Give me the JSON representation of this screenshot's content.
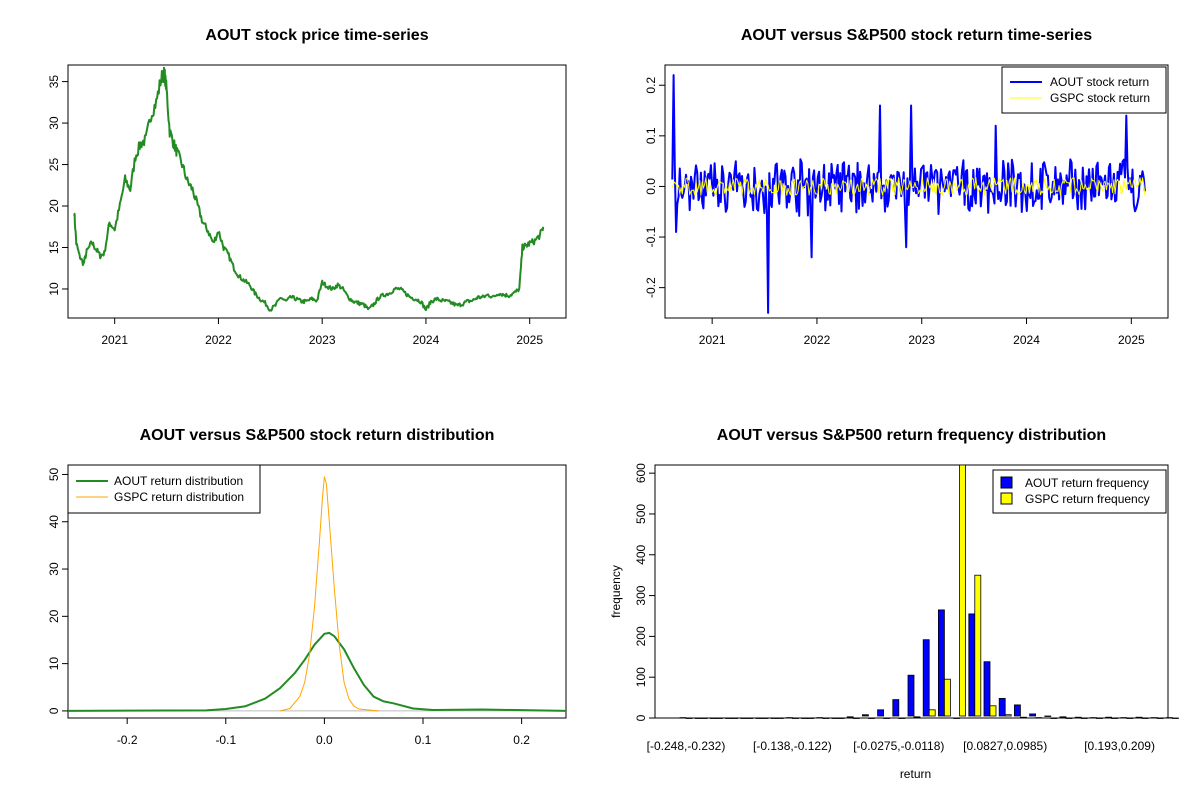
{
  "chart_data": [
    {
      "type": "line",
      "title": "AOUT stock price time-series",
      "xlabel": "",
      "ylabel": "",
      "xlim": [
        2020.55,
        2025.35
      ],
      "ylim": [
        6.5,
        37
      ],
      "xticks": [
        "2021",
        "2022",
        "2023",
        "2024",
        "2025"
      ],
      "yticks": [
        10,
        15,
        20,
        25,
        30,
        35
      ],
      "grid": false,
      "color": "#228B22",
      "series": [
        {
          "x": [
            2020.61,
            2020.63,
            2020.66,
            2020.7,
            2020.73,
            2020.78,
            2020.82,
            2020.86,
            2020.9,
            2020.95,
            2021.0,
            2021.05,
            2021.1,
            2021.15,
            2021.2,
            2021.25,
            2021.3,
            2021.35,
            2021.4,
            2021.45,
            2021.48,
            2021.5,
            2021.53,
            2021.57,
            2021.6,
            2021.65,
            2021.7,
            2021.75,
            2021.8,
            2021.85,
            2021.9,
            2021.95,
            2022.0,
            2022.05,
            2022.1,
            2022.15,
            2022.2,
            2022.25,
            2022.3,
            2022.35,
            2022.4,
            2022.45,
            2022.5,
            2022.55,
            2022.6,
            2022.65,
            2022.7,
            2022.75,
            2022.8,
            2022.85,
            2022.9,
            2022.95,
            2023.0,
            2023.05,
            2023.1,
            2023.15,
            2023.2,
            2023.25,
            2023.3,
            2023.35,
            2023.4,
            2023.45,
            2023.5,
            2023.55,
            2023.6,
            2023.65,
            2023.7,
            2023.75,
            2023.8,
            2023.85,
            2023.9,
            2023.95,
            2024.0,
            2024.05,
            2024.1,
            2024.15,
            2024.2,
            2024.25,
            2024.3,
            2024.35,
            2024.4,
            2024.45,
            2024.5,
            2024.55,
            2024.6,
            2024.65,
            2024.7,
            2024.75,
            2024.8,
            2024.85,
            2024.9,
            2024.93,
            2024.96,
            2025.0,
            2025.05,
            2025.1,
            2025.13
          ],
          "y": [
            19.3,
            15.5,
            14.0,
            13.0,
            14.5,
            15.6,
            14.8,
            14.0,
            14.3,
            18.0,
            17.2,
            20.0,
            23.2,
            22.0,
            26.0,
            27.5,
            28.0,
            31.0,
            32.5,
            35.5,
            36.0,
            34.0,
            29.0,
            27.5,
            26.5,
            25.0,
            23.0,
            22.0,
            20.0,
            18.0,
            17.0,
            15.5,
            17.0,
            15.0,
            14.0,
            12.5,
            11.5,
            11.0,
            10.5,
            9.5,
            8.8,
            8.3,
            7.5,
            8.0,
            9.0,
            8.5,
            9.0,
            8.8,
            8.5,
            8.5,
            8.8,
            8.6,
            10.8,
            10.3,
            10.0,
            10.5,
            10.0,
            9.0,
            8.5,
            8.3,
            8.1,
            7.5,
            8.2,
            9.0,
            9.3,
            9.5,
            10.0,
            10.0,
            9.5,
            9.0,
            8.8,
            8.5,
            7.5,
            8.5,
            8.8,
            8.6,
            8.5,
            8.3,
            8.0,
            8.2,
            8.5,
            8.6,
            9.0,
            9.0,
            9.3,
            9.0,
            9.5,
            9.3,
            9.2,
            9.5,
            10.0,
            15.0,
            15.2,
            15.5,
            15.8,
            16.5,
            17.5
          ]
        }
      ]
    },
    {
      "type": "line",
      "title": "AOUT versus S&P500 stock return time-series",
      "xlabel": "",
      "ylabel": "",
      "xlim": [
        2020.55,
        2025.35
      ],
      "ylim": [
        -0.26,
        0.24
      ],
      "xticks": [
        "2021",
        "2022",
        "2023",
        "2024",
        "2025"
      ],
      "yticks": [
        "-0.2",
        "-0.1",
        "0.0",
        "0.1",
        "0.2"
      ],
      "legend": "top-right",
      "series": [
        {
          "name": "AOUT stock return",
          "color": "#0000FF",
          "spikes": [
            [
              2020.63,
              0.22
            ],
            [
              2020.66,
              -0.09
            ],
            [
              2021.53,
              -0.25
            ],
            [
              2021.95,
              -0.14
            ],
            [
              2022.6,
              0.16
            ],
            [
              2022.9,
              0.16
            ],
            [
              2023.7,
              0.12
            ],
            [
              2024.95,
              0.14
            ],
            [
              2022.85,
              -0.12
            ]
          ]
        },
        {
          "name": "GSPC stock return",
          "color": "#FFFF00"
        }
      ]
    },
    {
      "type": "line",
      "title": "AOUT versus S&P500 stock return distribution",
      "xlabel": "",
      "ylabel": "",
      "xlim": [
        -0.26,
        0.245
      ],
      "ylim": [
        -1.5,
        52
      ],
      "xticks": [
        "-0.2",
        "-0.1",
        "0.0",
        "0.1",
        "0.2"
      ],
      "yticks": [
        0,
        10,
        20,
        30,
        40,
        50
      ],
      "legend": "top-left",
      "series": [
        {
          "name": "AOUT return distribution",
          "color": "#228B22",
          "x": [
            -0.26,
            -0.12,
            -0.1,
            -0.08,
            -0.06,
            -0.045,
            -0.03,
            -0.02,
            -0.01,
            0.0,
            0.005,
            0.01,
            0.02,
            0.03,
            0.04,
            0.05,
            0.06,
            0.07,
            0.09,
            0.11,
            0.16,
            0.245
          ],
          "y": [
            0,
            0.1,
            0.4,
            1.0,
            2.6,
            4.8,
            8.0,
            10.8,
            14.0,
            16.3,
            16.5,
            15.8,
            13.0,
            9.0,
            5.5,
            3.0,
            2.0,
            1.6,
            0.5,
            0.2,
            0.3,
            0
          ]
        },
        {
          "name": "GSPC return distribution",
          "color": "#FFA500",
          "x": [
            -0.045,
            -0.035,
            -0.025,
            -0.02,
            -0.015,
            -0.01,
            -0.005,
            -0.002,
            0.0,
            0.002,
            0.005,
            0.01,
            0.015,
            0.02,
            0.025,
            0.03,
            0.035,
            0.045,
            0.055
          ],
          "y": [
            0,
            0.5,
            3.0,
            6.0,
            12.0,
            22.0,
            36.0,
            45.0,
            49.5,
            48.0,
            40.0,
            26.0,
            14.0,
            6.0,
            2.5,
            1.0,
            0.4,
            0.2,
            0
          ]
        }
      ]
    },
    {
      "type": "bar",
      "title": "AOUT versus S&P500 return frequency distribution",
      "xlabel": "return",
      "ylabel": "frequency",
      "ylim": [
        0,
        620
      ],
      "yticks": [
        0,
        100,
        200,
        300,
        400,
        500,
        600
      ],
      "xticklabels": [
        {
          "label": "[-0.248,-0.232)",
          "index": 0
        },
        {
          "label": "[-0.138,-0.122)",
          "index": 7
        },
        {
          "label": "[-0.0275,-0.0118)",
          "index": 14
        },
        {
          "label": "[0.0827,0.0985)",
          "index": 21
        },
        {
          "label": "[0.193,0.209)",
          "index": 28
        }
      ],
      "legend": "top-right",
      "series": [
        {
          "name": "AOUT return frequency",
          "color": "#0000FF",
          "values": [
            1,
            0,
            0,
            0,
            0,
            0,
            0,
            1,
            0,
            1,
            0,
            3,
            8,
            20,
            45,
            105,
            192,
            265,
            0,
            255,
            138,
            48,
            32,
            10,
            5,
            3,
            2,
            1,
            2,
            1,
            2,
            1,
            1
          ]
        },
        {
          "name": "GSPC return frequency",
          "color": "#FFFF00",
          "values": [
            0,
            0,
            0,
            0,
            0,
            0,
            0,
            0,
            0,
            0,
            0,
            0,
            0,
            0,
            0,
            3,
            20,
            95,
            625,
            350,
            30,
            8,
            2,
            1,
            0,
            0,
            0,
            0,
            0,
            0,
            0,
            0,
            0
          ]
        }
      ]
    }
  ]
}
